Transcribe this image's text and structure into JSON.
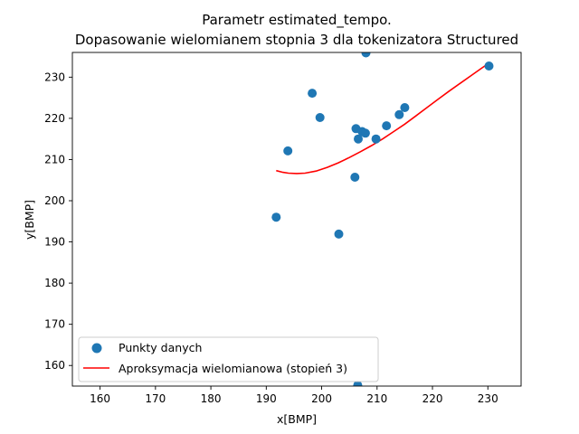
{
  "chart_data": {
    "type": "scatter",
    "title_lines": [
      "Parametr estimated_tempo.",
      "Dopasowanie wielomianem stopnia 3 dla tokenizatora Structured"
    ],
    "xlabel": "x[BMP]",
    "ylabel": "y[BMP]",
    "xlim": [
      155,
      236
    ],
    "ylim": [
      155,
      236
    ],
    "xticks": [
      160,
      170,
      180,
      190,
      200,
      210,
      220,
      230
    ],
    "yticks": [
      160,
      170,
      180,
      190,
      200,
      210,
      220,
      230
    ],
    "grid": false,
    "legend_position": "lower-left",
    "series": [
      {
        "name": "Punkty danych",
        "kind": "scatter",
        "color": "#1f77b4",
        "points": [
          [
            191.8,
            196.0
          ],
          [
            193.9,
            212.1
          ],
          [
            198.3,
            226.1
          ],
          [
            199.7,
            220.2
          ],
          [
            203.1,
            191.9
          ],
          [
            206.0,
            205.7
          ],
          [
            206.2,
            217.5
          ],
          [
            206.6,
            215.0
          ],
          [
            207.3,
            216.8
          ],
          [
            207.9,
            216.4
          ],
          [
            208.0,
            235.9
          ],
          [
            209.8,
            215.0
          ],
          [
            211.7,
            218.2
          ],
          [
            214.0,
            220.9
          ],
          [
            215.0,
            222.6
          ],
          [
            230.2,
            232.7
          ],
          [
            206.5,
            155.2
          ]
        ]
      },
      {
        "name": "Aproksymacja wielomianowa (stopień 3)",
        "kind": "line",
        "color": "#ff0000",
        "points": [
          [
            191.8,
            207.3
          ],
          [
            193.0,
            206.9
          ],
          [
            194.0,
            206.7
          ],
          [
            195.5,
            206.6
          ],
          [
            197.0,
            206.7
          ],
          [
            199.0,
            207.2
          ],
          [
            201.0,
            208.1
          ],
          [
            203.0,
            209.2
          ],
          [
            205.0,
            210.5
          ],
          [
            207.0,
            211.9
          ],
          [
            209.0,
            213.4
          ],
          [
            211.0,
            215.0
          ],
          [
            213.0,
            216.8
          ],
          [
            215.0,
            218.6
          ],
          [
            217.0,
            220.6
          ],
          [
            219.0,
            222.6
          ],
          [
            221.0,
            224.6
          ],
          [
            223.0,
            226.6
          ],
          [
            225.0,
            228.5
          ],
          [
            227.0,
            230.4
          ],
          [
            229.0,
            232.3
          ],
          [
            230.2,
            233.4
          ]
        ]
      }
    ]
  }
}
